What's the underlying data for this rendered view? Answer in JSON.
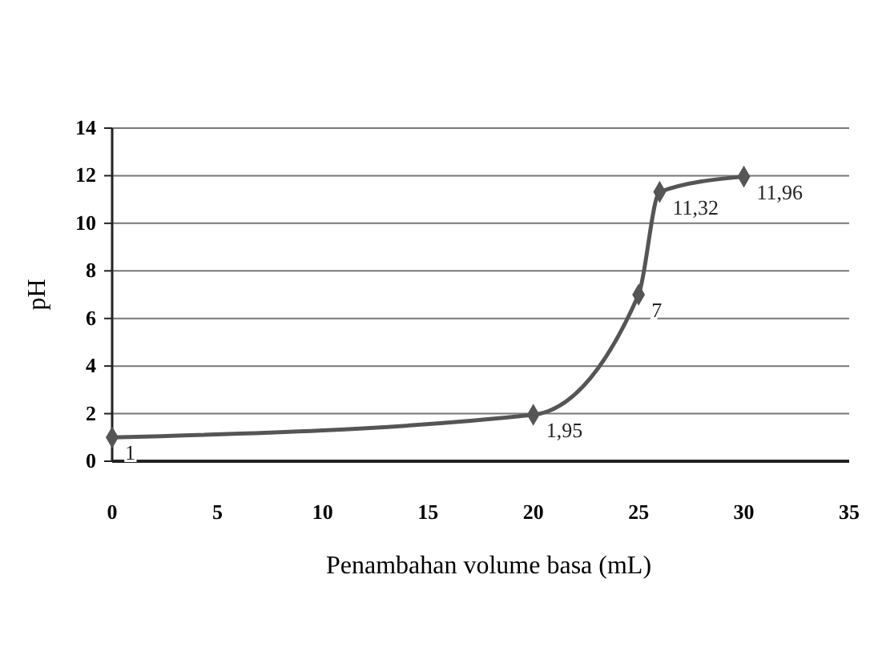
{
  "chart_data": {
    "type": "line",
    "xlabel": "Penambahan volume basa (mL)",
    "ylabel": "pH",
    "x": [
      0,
      20,
      25,
      26,
      30
    ],
    "series": [
      {
        "color": "#555555",
        "values": [
          1,
          1.95,
          7,
          11.32,
          11.96
        ],
        "value_labels": [
          "1",
          "1,95",
          "7",
          "11,32",
          "11,96"
        ]
      }
    ],
    "xlim": [
      0,
      35
    ],
    "xticks": [
      0,
      5,
      10,
      15,
      20,
      25,
      30,
      35
    ],
    "ylim": [
      0,
      14
    ],
    "yticks": [
      0,
      2,
      4,
      6,
      8,
      10,
      12,
      14
    ],
    "grid": "y",
    "marker": "diamond",
    "line_style": "solid"
  }
}
